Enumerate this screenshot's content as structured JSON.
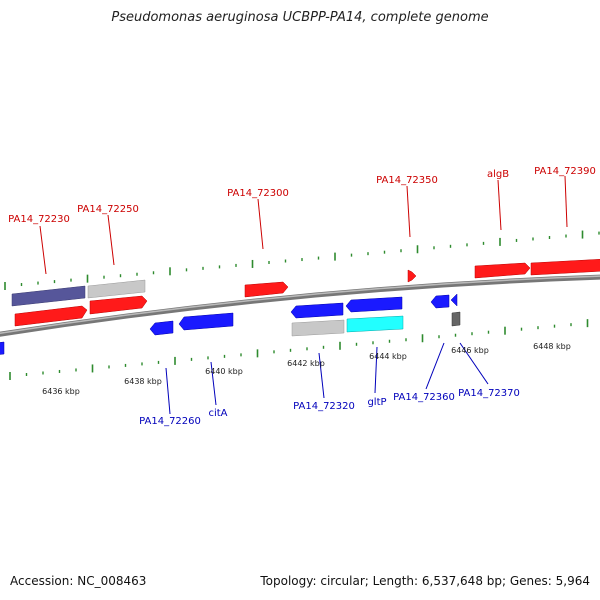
{
  "title": "Pseudomonas aeruginosa UCBPP-PA14, complete genome",
  "footer": {
    "accession": "Accession: NC_008463",
    "summary": "Topology: circular; Length: 6,537,648 bp; Genes: 5,964"
  },
  "colors": {
    "forward_gene": "#ff1a1a",
    "forward_label": "#cc0000",
    "reverse_gene": "#1a1aff",
    "reverse_label": "#0000bb",
    "tick": "#2e8b2e",
    "backbone": "#8a8a8a",
    "rna_gray": "#c8c8c8",
    "slate": "#5a5a9a",
    "cyan": "#22ffff"
  },
  "scale_labels": [
    "6436 kbp",
    "6438 kbp",
    "6440 kbp",
    "6442 kbp",
    "6444 kbp",
    "6446 kbp",
    "6448 kbp"
  ],
  "forward_labels": [
    "PA14_72230",
    "PA14_72250",
    "PA14_72300",
    "PA14_72350",
    "algB",
    "PA14_72390"
  ],
  "reverse_labels": [
    "PA14_72260",
    "citA",
    "PA14_72320",
    "gltP",
    "PA14_72360",
    "PA14_72370"
  ]
}
